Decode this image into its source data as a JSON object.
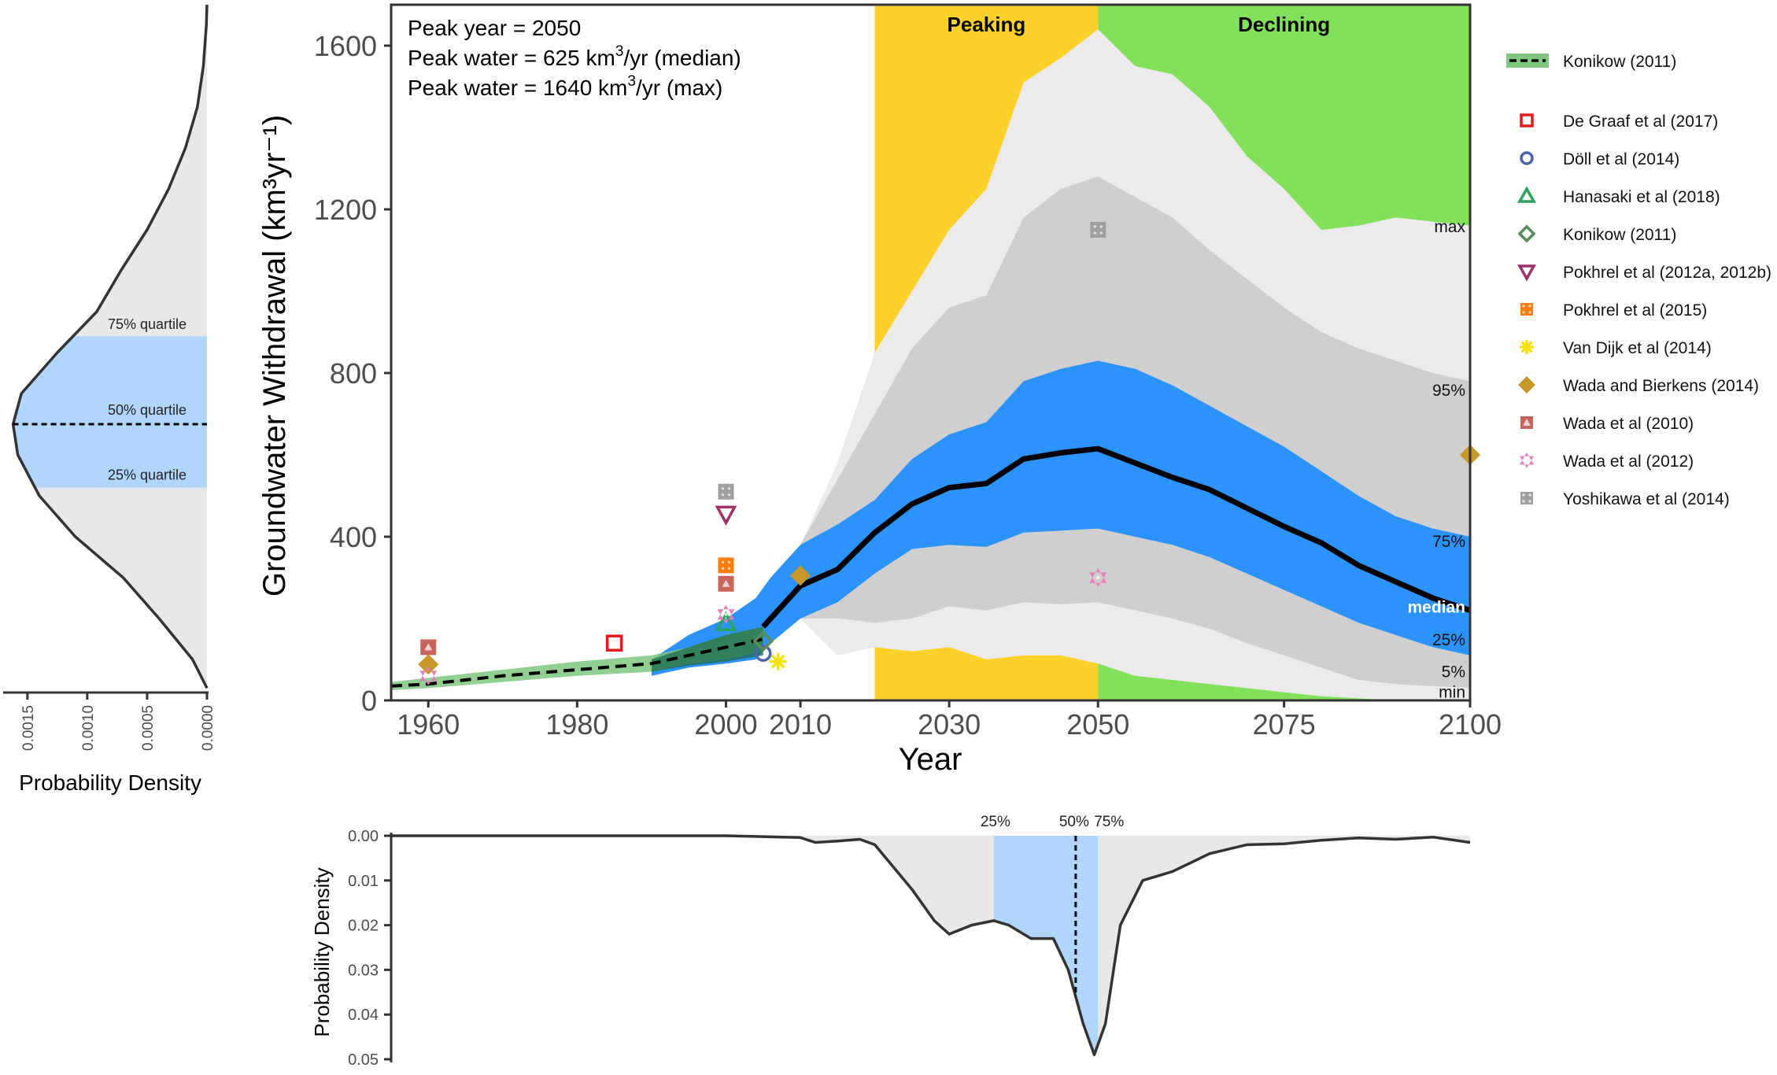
{
  "colors": {
    "peaking": "#fdd12a",
    "declining": "#82e05a",
    "range_min_max": "#ebebeb",
    "range_5_95": "#cfcfcf",
    "range_25_75": "#2b93fb",
    "median": "#000000",
    "konikow_band": "#7fc77f",
    "density_fill": "#e8e8e8",
    "density_quartile": "#b1d6fb",
    "axis_text": "#4d4d4d"
  },
  "chart_data": [
    {
      "id": "main",
      "type": "area",
      "xlabel": "Year",
      "ylabel": "Groundwater Withdrawal (km³yr⁻¹)",
      "xlim": [
        1955,
        2100
      ],
      "ylim": [
        0,
        1700
      ],
      "x_ticks": [
        1960,
        1980,
        2000,
        2010,
        2030,
        2050,
        2075,
        2100
      ],
      "y_ticks": [
        0,
        400,
        800,
        1200,
        1600
      ],
      "x_tick_labels": [
        "1960",
        "1980",
        "2000",
        "2010",
        "2030",
        "2050",
        "2075",
        "2100"
      ],
      "y_tick_labels": [
        "0",
        "400",
        "800",
        "1200",
        "1600"
      ],
      "annotations": {
        "peak_year": "Peak year = 2050",
        "peak_median_prefix": "Peak water = 625 km",
        "peak_median_suffix": "/yr (median)",
        "peak_max_prefix": "Peak water = 1640 km",
        "peak_max_suffix": "/yr (max)",
        "superscript": "3"
      },
      "phases": [
        {
          "label": "Peaking",
          "from": 2020,
          "to": 2050
        },
        {
          "label": "Declining",
          "from": 2050,
          "to": 2100
        }
      ],
      "band_labels": [
        "max",
        "95%",
        "75%",
        "median",
        "25%",
        "5%",
        "min"
      ],
      "projection_x": [
        2010,
        2015,
        2020,
        2025,
        2030,
        2035,
        2040,
        2045,
        2050,
        2055,
        2060,
        2065,
        2070,
        2075,
        2080,
        2085,
        2090,
        2095,
        2100
      ],
      "bands": {
        "max": [
          380,
          580,
          850,
          1000,
          1150,
          1250,
          1510,
          1570,
          1640,
          1550,
          1530,
          1450,
          1330,
          1250,
          1150,
          1160,
          1180,
          1170,
          1160
        ],
        "p95": [
          380,
          540,
          700,
          860,
          960,
          990,
          1180,
          1250,
          1280,
          1230,
          1180,
          1100,
          1030,
          960,
          900,
          860,
          830,
          800,
          780
        ],
        "p75": [
          380,
          430,
          490,
          590,
          650,
          680,
          780,
          810,
          830,
          810,
          770,
          720,
          670,
          620,
          560,
          500,
          450,
          420,
          400
        ],
        "median": [
          280,
          320,
          410,
          480,
          520,
          530,
          590,
          605,
          615,
          580,
          545,
          515,
          470,
          425,
          385,
          330,
          290,
          250,
          220
        ],
        "p25": [
          200,
          240,
          310,
          370,
          380,
          375,
          410,
          415,
          420,
          400,
          380,
          350,
          310,
          270,
          230,
          190,
          160,
          130,
          110
        ],
        "p5": [
          200,
          200,
          190,
          200,
          230,
          220,
          240,
          235,
          240,
          220,
          200,
          175,
          140,
          110,
          80,
          50,
          40,
          35,
          30
        ],
        "min": [
          200,
          110,
          130,
          120,
          130,
          100,
          110,
          110,
          90,
          60,
          50,
          40,
          30,
          20,
          10,
          5,
          0,
          0,
          0
        ]
      },
      "historic_band": {
        "x": [
          1990,
          1995,
          2000,
          2004,
          2006,
          2010
        ],
        "upper": [
          100,
          160,
          200,
          250,
          300,
          380
        ],
        "lower": [
          60,
          80,
          90,
          100,
          140,
          200
        ]
      },
      "konikow_line": {
        "name": "Konikow (2011)",
        "x": [
          1955,
          1960,
          1970,
          1980,
          1990,
          1995,
          2000,
          2005
        ],
        "y": [
          35,
          40,
          60,
          75,
          90,
          110,
          130,
          150
        ],
        "upper": [
          45,
          55,
          75,
          95,
          110,
          130,
          160,
          180
        ],
        "lower": [
          25,
          30,
          45,
          60,
          70,
          90,
          100,
          120
        ]
      },
      "legend_title_line": "Konikow (2011)",
      "series": [
        {
          "name": "De Graaf et al (2017)",
          "shape": "square-open",
          "color": "#e31a1c",
          "points": [
            [
              1985,
              140
            ]
          ]
        },
        {
          "name": "Döll et al (2014)",
          "shape": "circle-open",
          "color": "#4a64a8",
          "points": [
            [
              2005,
              115
            ]
          ]
        },
        {
          "name": "Hanasaki et al (2018)",
          "shape": "triangle-open",
          "color": "#2ca25f",
          "points": [
            [
              2000,
              190
            ]
          ]
        },
        {
          "name": "Konikow (2011)",
          "shape": "diamond-open",
          "color": "#5b8a5b",
          "points": [
            [
              2005,
              145
            ]
          ]
        },
        {
          "name": "Pokhrel et al (2012a, 2012b)",
          "shape": "triangle-down-open",
          "color": "#a0306a",
          "points": [
            [
              2000,
              455
            ]
          ]
        },
        {
          "name": "Pokhrel et al (2015)",
          "shape": "square-dotted",
          "color": "#ff7f0e",
          "points": [
            [
              2000,
              330
            ]
          ]
        },
        {
          "name": "Van Dijk et al (2014)",
          "shape": "asterisk",
          "color": "#f5e20a",
          "points": [
            [
              2007,
              95
            ]
          ]
        },
        {
          "name": "Wada and Bierkens (2014)",
          "shape": "diamond",
          "color": "#c9962a",
          "points": [
            [
              1960,
              88
            ],
            [
              2010,
              305
            ],
            [
              2100,
              600
            ]
          ]
        },
        {
          "name": "Wada et al (2010)",
          "shape": "square-triangle",
          "color": "#c8665e",
          "points": [
            [
              1960,
              130
            ],
            [
              2000,
              285
            ]
          ]
        },
        {
          "name": "Wada et al (2012)",
          "shape": "hexagram",
          "color": "#e57fb7",
          "points": [
            [
              1960,
              60
            ],
            [
              2000,
              210
            ],
            [
              2050,
              300
            ]
          ]
        },
        {
          "name": "Yoshikawa et al (2014)",
          "shape": "square-grey",
          "color": "#a0a0a0",
          "points": [
            [
              2000,
              510
            ],
            [
              2050,
              1150
            ]
          ]
        }
      ]
    },
    {
      "id": "left_density",
      "type": "area",
      "xlabel": "Probability Density",
      "x_ticks": [
        0.0015,
        0.001,
        0.0005,
        0.0
      ],
      "x_tick_labels": [
        "0.0015",
        "0.0010",
        "0.0005",
        "0.0000"
      ],
      "quartile_labels": [
        "75% quartile",
        "50% quartile",
        "25% quartile"
      ],
      "quartiles": [
        890,
        675,
        520
      ],
      "density_y": [
        30,
        100,
        200,
        300,
        400,
        500,
        600,
        675,
        750,
        850,
        950,
        1050,
        1150,
        1250,
        1350,
        1450,
        1550,
        1650,
        1700
      ],
      "density_x": [
        0.0,
        0.00012,
        0.0004,
        0.0007,
        0.0011,
        0.0014,
        0.00158,
        0.00162,
        0.00155,
        0.00125,
        0.00092,
        0.00072,
        0.0005,
        0.00032,
        0.00018,
        8e-05,
        3e-05,
        5e-06,
        0.0
      ]
    },
    {
      "id": "bottom_density",
      "type": "area",
      "ylabel": "Probability Density",
      "y_ticks": [
        0.0,
        0.01,
        0.02,
        0.03,
        0.04,
        0.05
      ],
      "y_tick_labels": [
        "0.00",
        "0.01",
        "0.02",
        "0.03",
        "0.04",
        "0.05"
      ],
      "quartile_labels": [
        "25%",
        "50%",
        "75%"
      ],
      "quartiles": [
        2036,
        2047,
        2050
      ],
      "density_x": [
        1955,
        2000,
        2010,
        2012,
        2015,
        2018,
        2020,
        2025,
        2028,
        2030,
        2033,
        2036,
        2038,
        2041,
        2044,
        2046,
        2048,
        2049.5,
        2051,
        2053,
        2056,
        2060,
        2065,
        2070,
        2075,
        2080,
        2085,
        2090,
        2095,
        2100
      ],
      "density_y": [
        0.0,
        0.0,
        0.0004,
        0.0015,
        0.0012,
        0.0008,
        0.002,
        0.012,
        0.019,
        0.022,
        0.02,
        0.019,
        0.02,
        0.023,
        0.023,
        0.03,
        0.042,
        0.049,
        0.042,
        0.02,
        0.01,
        0.008,
        0.004,
        0.002,
        0.0018,
        0.001,
        0.0005,
        0.0008,
        0.0003,
        0.0015
      ]
    }
  ]
}
